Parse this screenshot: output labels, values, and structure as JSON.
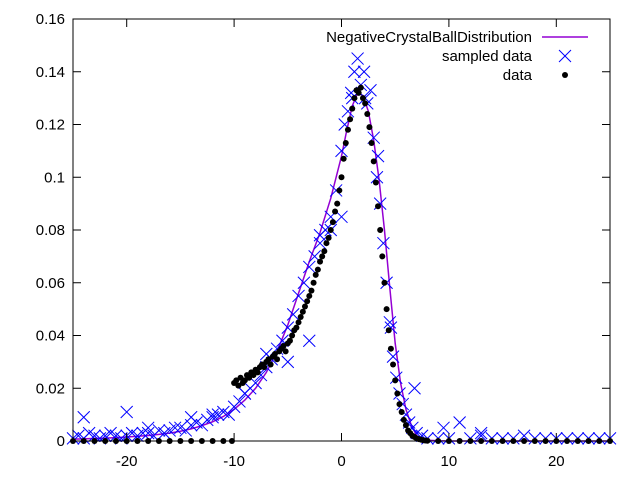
{
  "chart_data": {
    "type": "scatter",
    "title": "",
    "xlabel": "",
    "ylabel": "",
    "xlim": [
      -25,
      25
    ],
    "ylim": [
      0,
      0.16
    ],
    "xticks": [
      -20,
      -10,
      0,
      10,
      20
    ],
    "xtick_labels": [
      "-20",
      "-10",
      "0",
      "10",
      "20"
    ],
    "yticks": [
      0,
      0.02,
      0.04,
      0.06,
      0.08,
      0.1,
      0.12,
      0.14,
      0.16
    ],
    "ytick_labels": [
      "0",
      "0.02",
      "0.04",
      "0.06",
      "0.08",
      "0.1",
      "0.12",
      "0.14",
      "0.16"
    ],
    "grid": false,
    "legend_position": "top-right",
    "series": [
      {
        "name": "NegativeCrystalBallDistribution",
        "kind": "line",
        "color": "#9400d3",
        "x": [
          -25,
          -24,
          -23,
          -22,
          -21,
          -20,
          -19,
          -18,
          -17,
          -16,
          -15,
          -14,
          -13,
          -12,
          -11,
          -10,
          -9,
          -8,
          -7,
          -6,
          -5,
          -4,
          -3,
          -2,
          -1,
          0,
          0.5,
          1,
          1.5,
          2,
          2.5,
          3,
          3.5,
          4,
          4.5,
          5,
          5.5,
          6,
          6.5,
          7,
          7.5,
          8,
          9,
          10,
          12,
          15,
          20,
          25
        ],
        "y": [
          0.0007,
          0.0008,
          0.001,
          0.0011,
          0.0013,
          0.0015,
          0.0018,
          0.0021,
          0.0025,
          0.003,
          0.0037,
          0.0046,
          0.0058,
          0.0073,
          0.0093,
          0.012,
          0.0155,
          0.02,
          0.026,
          0.034,
          0.044,
          0.056,
          0.068,
          0.079,
          0.092,
          0.108,
          0.118,
          0.127,
          0.132,
          0.131,
          0.125,
          0.114,
          0.099,
          0.08,
          0.058,
          0.037,
          0.022,
          0.012,
          0.006,
          0.002,
          0.0008,
          0.0003,
          0.0001,
          0,
          0,
          0,
          0,
          0
        ]
      },
      {
        "name": "sampled data",
        "kind": "scatter",
        "marker": "x",
        "color": "#0000ff",
        "x": [
          -25,
          -24.5,
          -24,
          -23.5,
          -23,
          -22.5,
          -22,
          -21.5,
          -21,
          -20.5,
          -20,
          -19.5,
          -19,
          -18.5,
          -18,
          -17.5,
          -17,
          -16.5,
          -16,
          -15.5,
          -15,
          -14.5,
          -14,
          -13.5,
          -13,
          -12.5,
          -12,
          -11.5,
          -11,
          -10.5,
          -10,
          -9.5,
          -9,
          -8.5,
          -8,
          -7.5,
          -7,
          -6.5,
          -6,
          -5.5,
          -5,
          -4.5,
          -4,
          -3.5,
          -3,
          -2.5,
          -2,
          -1.5,
          -1,
          -0.5,
          0,
          0.3,
          0.6,
          0.9,
          1.2,
          1.5,
          1.8,
          2.1,
          2.4,
          2.7,
          3,
          3.3,
          3.6,
          3.9,
          4.2,
          4.5,
          4.8,
          5.1,
          5.4,
          5.7,
          6,
          6.3,
          6.6,
          7,
          7.5,
          8,
          9,
          10,
          11,
          12,
          13,
          14,
          15,
          16,
          17,
          18,
          19,
          20,
          21,
          22,
          23,
          24,
          25,
          -24,
          -20,
          -18,
          -14,
          -12,
          -9,
          -7,
          -5,
          -3,
          -2,
          -1,
          0,
          1,
          2.2,
          3.4,
          4.6,
          6.8,
          9.5,
          13
        ],
        "y": [
          0.001,
          0.002,
          0.001,
          0.003,
          0.002,
          0.001,
          0.002,
          0.003,
          0.002,
          0.001,
          0.002,
          0.003,
          0.002,
          0.003,
          0.003,
          0.002,
          0.004,
          0.003,
          0.004,
          0.005,
          0.005,
          0.004,
          0.006,
          0.007,
          0.006,
          0.008,
          0.009,
          0.01,
          0.011,
          0.01,
          0.013,
          0.015,
          0.018,
          0.02,
          0.022,
          0.025,
          0.028,
          0.031,
          0.035,
          0.038,
          0.043,
          0.048,
          0.055,
          0.06,
          0.066,
          0.07,
          0.075,
          0.08,
          0.085,
          0.095,
          0.11,
          0.12,
          0.125,
          0.132,
          0.14,
          0.145,
          0.135,
          0.14,
          0.128,
          0.133,
          0.115,
          0.1,
          0.09,
          0.075,
          0.06,
          0.045,
          0.032,
          0.024,
          0.018,
          0.014,
          0.01,
          0.007,
          0.005,
          0.003,
          0.002,
          0.001,
          0.001,
          0.001,
          0.007,
          0.001,
          0.002,
          0.001,
          0.001,
          0.001,
          0.002,
          0.001,
          0.001,
          0.001,
          0.001,
          0.001,
          0.001,
          0.001,
          0.001,
          0.009,
          0.011,
          0.005,
          0.009,
          0.01,
          0.018,
          0.033,
          0.03,
          0.038,
          0.078,
          0.08,
          0.085,
          0.13,
          0.13,
          0.108,
          0.043,
          0.02,
          0.005,
          0.003
        ]
      },
      {
        "name": "data",
        "kind": "scatter",
        "marker": "dot",
        "color": "#000000",
        "x": [
          -25,
          -24,
          -23,
          -22,
          -21,
          -20,
          -19,
          -18,
          -17,
          -16,
          -15,
          -14,
          -13,
          -12,
          -11,
          -10.2,
          -10,
          -9.8,
          -9.6,
          -9.4,
          -9.2,
          -9,
          -8.8,
          -8.6,
          -8.4,
          -8.2,
          -8,
          -7.8,
          -7.6,
          -7.4,
          -7.2,
          -7,
          -6.8,
          -6.6,
          -6.4,
          -6.2,
          -6,
          -5.8,
          -5.6,
          -5.4,
          -5.2,
          -5,
          -4.8,
          -4.6,
          -4.4,
          -4.2,
          -4,
          -3.8,
          -3.6,
          -3.4,
          -3.2,
          -3,
          -2.8,
          -2.6,
          -2.4,
          -2.2,
          -2,
          -1.8,
          -1.6,
          -1.4,
          -1.2,
          -1,
          -0.8,
          -0.6,
          -0.4,
          -0.2,
          0,
          0.2,
          0.4,
          0.6,
          0.8,
          1,
          1.2,
          1.4,
          1.6,
          1.8,
          2,
          2.2,
          2.4,
          2.6,
          2.8,
          3,
          3.2,
          3.4,
          3.6,
          3.8,
          4,
          4.2,
          4.4,
          4.6,
          4.8,
          5,
          5.2,
          5.4,
          5.6,
          5.8,
          6,
          6.2,
          6.4,
          6.6,
          6.8,
          7,
          7.2,
          7.4,
          7.6,
          7.8,
          8,
          9,
          10,
          11,
          12,
          13,
          14,
          15,
          16,
          17,
          18,
          19,
          20,
          21,
          22,
          23,
          24,
          25
        ],
        "y": [
          0,
          0,
          0,
          0,
          0,
          0,
          0,
          0,
          0,
          0,
          0,
          0,
          0,
          0,
          0,
          0,
          0.022,
          0.023,
          0.021,
          0.024,
          0.022,
          0.023,
          0.025,
          0.024,
          0.026,
          0.025,
          0.027,
          0.026,
          0.028,
          0.029,
          0.028,
          0.03,
          0.031,
          0.029,
          0.032,
          0.033,
          0.031,
          0.034,
          0.035,
          0.036,
          0.034,
          0.037,
          0.038,
          0.04,
          0.042,
          0.043,
          0.045,
          0.047,
          0.049,
          0.051,
          0.053,
          0.055,
          0.057,
          0.06,
          0.063,
          0.065,
          0.068,
          0.07,
          0.072,
          0.075,
          0.077,
          0.08,
          0.083,
          0.087,
          0.09,
          0.095,
          0.1,
          0.107,
          0.113,
          0.118,
          0.122,
          0.126,
          0.13,
          0.133,
          0.132,
          0.134,
          0.13,
          0.128,
          0.124,
          0.119,
          0.113,
          0.106,
          0.098,
          0.089,
          0.08,
          0.07,
          0.06,
          0.05,
          0.042,
          0.035,
          0.029,
          0.023,
          0.018,
          0.014,
          0.011,
          0.008,
          0.006,
          0.004,
          0.003,
          0.002,
          0.0015,
          0.001,
          0.0007,
          0.0005,
          0.0003,
          0.0002,
          0.0001,
          0,
          0,
          0,
          0,
          0,
          0,
          0,
          0,
          0,
          0,
          0,
          0,
          0,
          0,
          0,
          0,
          0
        ]
      }
    ]
  }
}
